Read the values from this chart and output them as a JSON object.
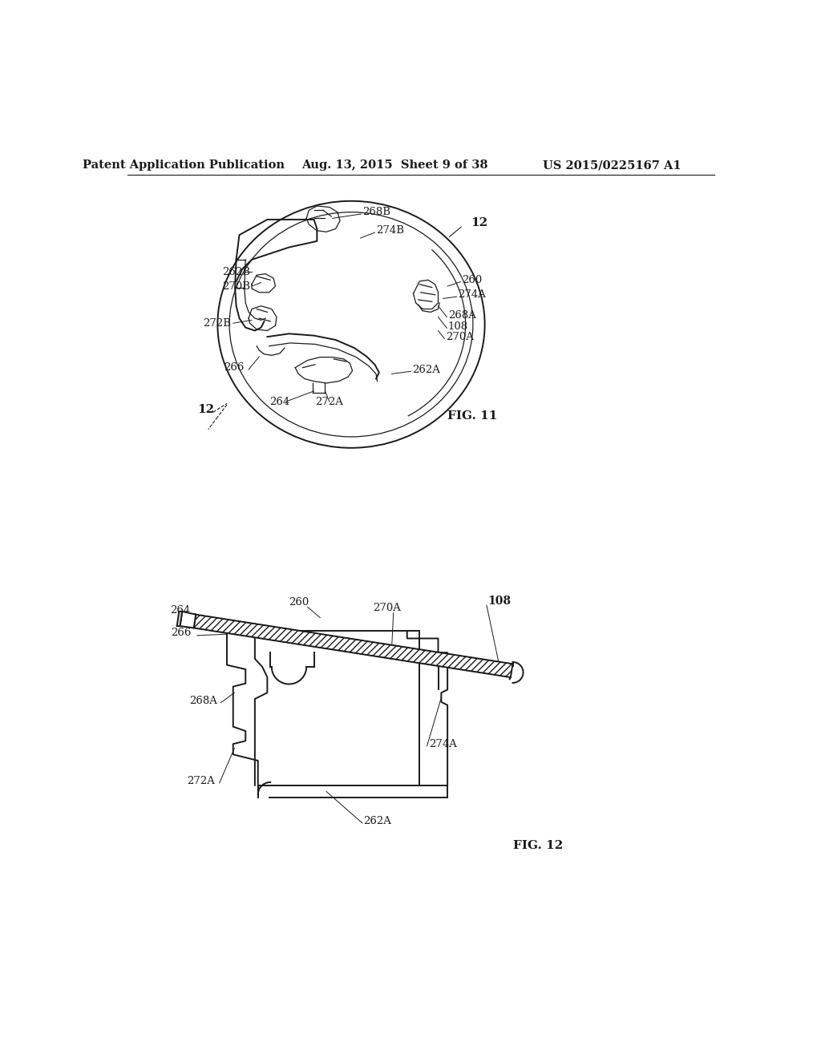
{
  "page_title_left": "Patent Application Publication",
  "page_title_center": "Aug. 13, 2015  Sheet 9 of 38",
  "page_title_right": "US 2015/0225167 A1",
  "fig11_label": "FIG. 11",
  "fig12_label": "FIG. 12",
  "background_color": "#ffffff",
  "line_color": "#1a1a1a",
  "text_color": "#1a1a1a",
  "header_fontsize": 10.5,
  "label_fontsize": 9.5,
  "fig_label_fontsize": 11
}
